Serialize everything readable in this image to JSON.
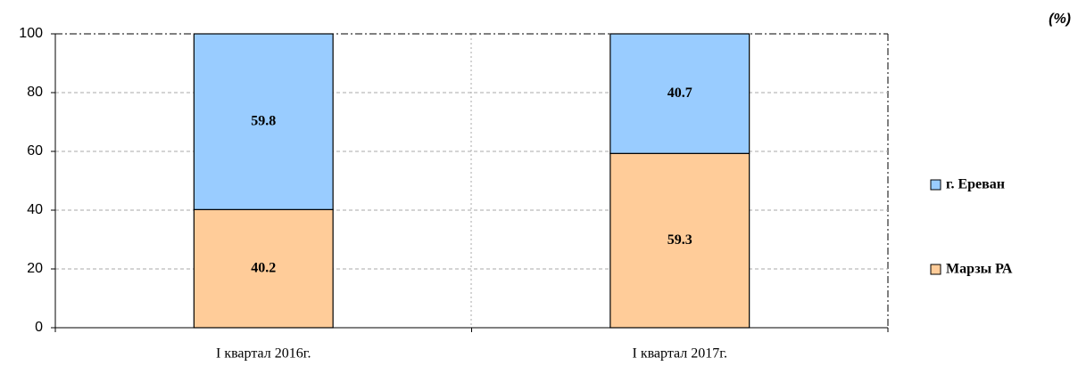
{
  "chart_data": {
    "type": "stacked_bar",
    "unit_label": "(%)",
    "categories": [
      "I квартал 2016г.",
      "I квартал 2017г."
    ],
    "series": [
      {
        "name": "Марзы РА",
        "color": "#ffcc99",
        "values": [
          40.2,
          59.3
        ]
      },
      {
        "name": "г. Ереван",
        "color": "#99ccff",
        "values": [
          59.8,
          40.7
        ]
      }
    ],
    "ylim": [
      0,
      100
    ],
    "yticks": [
      0,
      20,
      40,
      60,
      80,
      100
    ],
    "grid": true,
    "legend": "right"
  }
}
